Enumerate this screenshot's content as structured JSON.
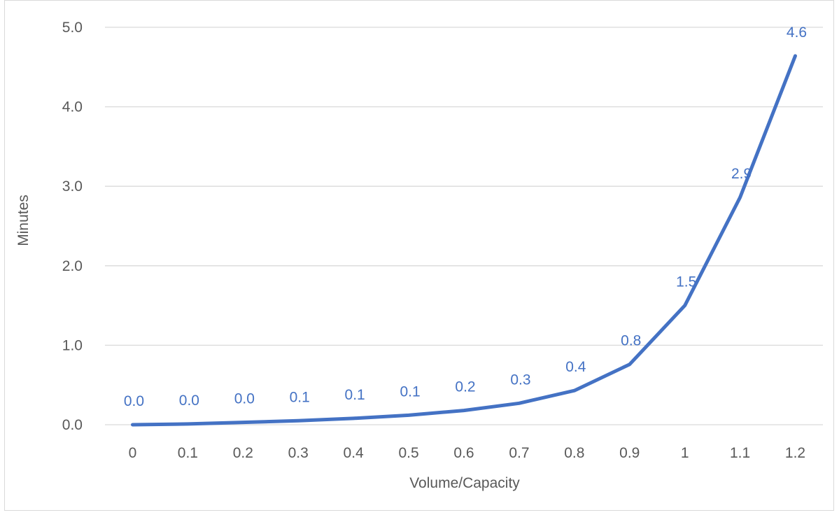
{
  "chart_data": {
    "type": "line",
    "title": "",
    "xlabel": "Volume/Capacity",
    "ylabel": "Minutes",
    "categories": [
      "0",
      "0.1",
      "0.2",
      "0.3",
      "0.4",
      "0.5",
      "0.6",
      "0.7",
      "0.8",
      "0.9",
      "1",
      "1.1",
      "1.2"
    ],
    "series": [
      {
        "values": [
          0.0,
          0.01,
          0.03,
          0.05,
          0.08,
          0.12,
          0.18,
          0.27,
          0.43,
          0.76,
          1.5,
          2.86,
          4.64
        ],
        "data_labels": [
          "0.0",
          "0.0",
          "0.0",
          "0.1",
          "0.1",
          "0.1",
          "0.2",
          "0.3",
          "0.4",
          "0.8",
          "1.5",
          "2.9",
          "4.6"
        ]
      }
    ],
    "ylim": [
      0,
      5
    ],
    "yticks": [
      "0.0",
      "1.0",
      "2.0",
      "3.0",
      "4.0",
      "5.0"
    ],
    "grid": true,
    "legend": "none",
    "colors": {
      "line": "#4472c4",
      "label": "#4472c4",
      "grid": "#d9d9d9",
      "axis_text": "#595959"
    }
  }
}
